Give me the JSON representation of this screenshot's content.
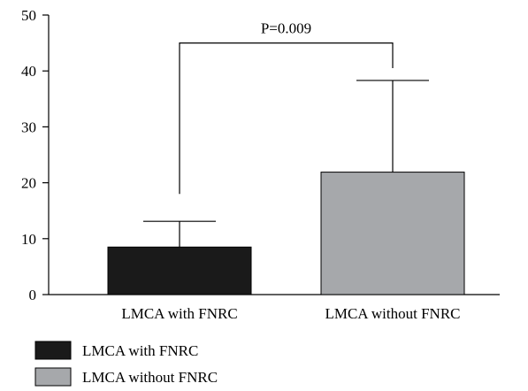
{
  "chart_data": {
    "type": "bar",
    "categories": [
      "LMCA with FNRC",
      "LMCA without FNRC"
    ],
    "values": [
      8.5,
      21.9
    ],
    "error_upper": [
      13.1,
      38.3
    ],
    "colors": [
      "#1a1a1a",
      "#a6a8ab"
    ],
    "ylim": [
      0,
      50
    ],
    "yticks": [
      "0",
      "10",
      "20",
      "30",
      "40",
      "50"
    ],
    "xlabel": "",
    "ylabel": "",
    "title": "",
    "grid": false,
    "legend": {
      "placement": "bottom-left",
      "entries": [
        "LMCA with FNRC",
        "LMCA without FNRC"
      ]
    },
    "annotations": {
      "significance": {
        "label": "P=0.009",
        "bracket_top": 45.0,
        "left_drop_to": 18.0,
        "right_drop_to": 40.5
      }
    }
  }
}
